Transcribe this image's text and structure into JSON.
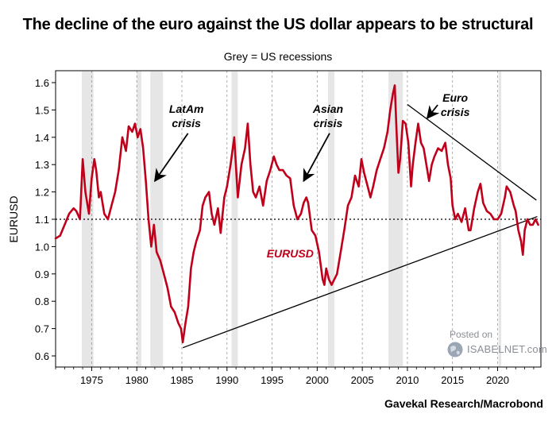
{
  "title": "The decline of the euro against the US dollar appears to be structural",
  "subtitle": "Grey = US recessions",
  "source": "Gavekal Research/Macrobond",
  "watermark": {
    "line1": "Posted on",
    "line2": "ISABELNET.com"
  },
  "colors": {
    "series": "#c0001a",
    "recession": "#e6e6e6",
    "trend": "#000000",
    "reference": "#000000"
  },
  "chart_data": {
    "type": "line",
    "title": "The decline of the euro against the US dollar appears to be structural",
    "ylabel": "EURUSD",
    "xlim": [
      1971.0,
      2024.8
    ],
    "ylim": [
      0.6,
      1.6
    ],
    "xticks": [
      1975,
      1980,
      1985,
      1990,
      1995,
      2000,
      2005,
      2010,
      2015,
      2020
    ],
    "yticks": [
      0.6,
      0.7,
      0.8,
      0.9,
      1.0,
      1.1,
      1.2,
      1.3,
      1.4,
      1.5,
      1.6
    ],
    "ytick_labels": [
      "0.6",
      "0.7",
      "0.8",
      "0.9",
      "1.0",
      "1.1",
      "1.2",
      "1.3",
      "1.4",
      "1.5",
      "1.6"
    ],
    "grid": {
      "x": true,
      "y": false,
      "style": "dashed"
    },
    "reference_line": {
      "y": 1.1,
      "style": "dotted"
    },
    "recessions": [
      [
        1973.9,
        1975.2
      ],
      [
        1980.0,
        1980.5
      ],
      [
        1981.5,
        1982.9
      ],
      [
        1990.5,
        1991.2
      ],
      [
        2001.2,
        2001.9
      ],
      [
        2007.9,
        2009.5
      ],
      [
        2020.1,
        2020.4
      ]
    ],
    "series": [
      {
        "name": "EURUSD",
        "x": [
          1971.0,
          1971.5,
          1972.0,
          1972.5,
          1973.0,
          1973.3,
          1973.7,
          1974.0,
          1974.3,
          1974.7,
          1975.0,
          1975.3,
          1975.5,
          1975.8,
          1976.0,
          1976.4,
          1976.8,
          1977.2,
          1977.6,
          1978.0,
          1978.4,
          1978.8,
          1979.1,
          1979.5,
          1979.8,
          1980.1,
          1980.4,
          1980.7,
          1981.0,
          1981.3,
          1981.6,
          1981.9,
          1982.2,
          1982.6,
          1983.0,
          1983.4,
          1983.8,
          1984.2,
          1984.6,
          1984.9,
          1985.1,
          1985.4,
          1985.7,
          1986.0,
          1986.3,
          1986.6,
          1987.0,
          1987.3,
          1987.6,
          1988.0,
          1988.3,
          1988.6,
          1989.0,
          1989.3,
          1989.7,
          1990.0,
          1990.4,
          1990.8,
          1991.2,
          1991.6,
          1992.0,
          1992.3,
          1992.6,
          1992.9,
          1993.2,
          1993.6,
          1994.0,
          1994.4,
          1994.8,
          1995.2,
          1995.5,
          1995.8,
          1996.2,
          1996.6,
          1997.0,
          1997.4,
          1997.8,
          1998.2,
          1998.5,
          1998.8,
          1999.0,
          1999.4,
          1999.8,
          2000.2,
          2000.6,
          2000.8,
          2001.0,
          2001.3,
          2001.6,
          2001.9,
          2002.2,
          2002.6,
          2003.0,
          2003.4,
          2003.8,
          2004.2,
          2004.6,
          2004.9,
          2005.2,
          2005.6,
          2005.9,
          2006.2,
          2006.6,
          2007.0,
          2007.4,
          2007.8,
          2008.1,
          2008.4,
          2008.6,
          2008.8,
          2009.0,
          2009.2,
          2009.5,
          2009.8,
          2010.1,
          2010.4,
          2010.6,
          2010.9,
          2011.2,
          2011.5,
          2011.8,
          2012.1,
          2012.4,
          2012.7,
          2013.0,
          2013.4,
          2013.8,
          2014.2,
          2014.5,
          2014.8,
          2015.0,
          2015.3,
          2015.6,
          2016.0,
          2016.4,
          2016.8,
          2017.0,
          2017.4,
          2017.8,
          2018.1,
          2018.4,
          2018.8,
          2019.2,
          2019.6,
          2020.0,
          2020.4,
          2020.8,
          2021.0,
          2021.4,
          2021.8,
          2022.0,
          2022.3,
          2022.6,
          2022.8,
          2023.0,
          2023.3,
          2023.6,
          2023.9,
          2024.2,
          2024.5
        ],
        "values": [
          1.03,
          1.04,
          1.08,
          1.12,
          1.14,
          1.13,
          1.1,
          1.32,
          1.2,
          1.12,
          1.25,
          1.32,
          1.28,
          1.18,
          1.2,
          1.12,
          1.1,
          1.15,
          1.2,
          1.28,
          1.4,
          1.35,
          1.44,
          1.42,
          1.45,
          1.4,
          1.43,
          1.36,
          1.24,
          1.1,
          1.0,
          1.08,
          0.98,
          0.95,
          0.9,
          0.85,
          0.78,
          0.76,
          0.72,
          0.7,
          0.65,
          0.72,
          0.78,
          0.92,
          0.98,
          1.02,
          1.06,
          1.15,
          1.18,
          1.2,
          1.12,
          1.08,
          1.14,
          1.05,
          1.18,
          1.22,
          1.3,
          1.4,
          1.18,
          1.3,
          1.36,
          1.45,
          1.3,
          1.2,
          1.18,
          1.22,
          1.15,
          1.24,
          1.28,
          1.33,
          1.3,
          1.28,
          1.28,
          1.26,
          1.25,
          1.15,
          1.1,
          1.12,
          1.16,
          1.18,
          1.16,
          1.06,
          1.04,
          0.98,
          0.88,
          0.86,
          0.92,
          0.88,
          0.86,
          0.88,
          0.9,
          0.98,
          1.06,
          1.15,
          1.18,
          1.26,
          1.22,
          1.32,
          1.27,
          1.22,
          1.18,
          1.22,
          1.28,
          1.32,
          1.36,
          1.42,
          1.5,
          1.56,
          1.59,
          1.42,
          1.27,
          1.32,
          1.46,
          1.45,
          1.38,
          1.22,
          1.3,
          1.38,
          1.45,
          1.38,
          1.36,
          1.3,
          1.24,
          1.3,
          1.33,
          1.36,
          1.35,
          1.38,
          1.3,
          1.25,
          1.15,
          1.1,
          1.12,
          1.09,
          1.14,
          1.06,
          1.06,
          1.14,
          1.2,
          1.23,
          1.16,
          1.13,
          1.12,
          1.1,
          1.1,
          1.12,
          1.18,
          1.22,
          1.2,
          1.15,
          1.13,
          1.06,
          1.02,
          0.97,
          1.06,
          1.1,
          1.08,
          1.08,
          1.1,
          1.08
        ]
      }
    ],
    "trend_lines": [
      {
        "x": [
          1985.1,
          2024.4
        ],
        "y": [
          0.63,
          1.11
        ]
      },
      {
        "x": [
          2010.0,
          2024.3
        ],
        "y": [
          1.52,
          1.17
        ]
      }
    ],
    "annotations": [
      {
        "text": [
          "LatAm",
          "crisis"
        ],
        "x": 1985.5,
        "y": 1.49,
        "arrow_to": [
          1982.0,
          1.24
        ]
      },
      {
        "text": [
          "Asian",
          "crisis"
        ],
        "x": 2001.2,
        "y": 1.49,
        "arrow_to": [
          1998.5,
          1.24
        ]
      },
      {
        "text": [
          "Euro",
          "crisis"
        ],
        "x": 2015.3,
        "y": 1.53,
        "arrow_to": [
          2012.2,
          1.47
        ]
      },
      {
        "text": [
          "EURUSD"
        ],
        "x": 1997.0,
        "y": 0.96,
        "color": "#c0001a"
      }
    ]
  }
}
